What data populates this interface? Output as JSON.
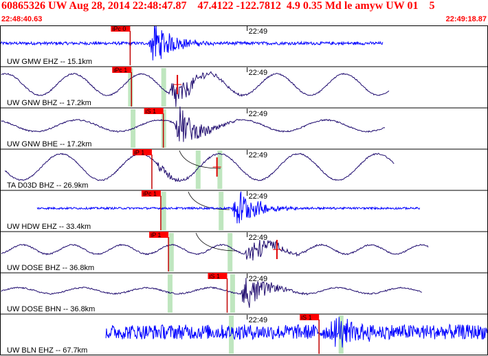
{
  "header": {
    "title": "60865326 UW Aug 28, 2014 22:48:47.87    47.4122 -122.7812  4.9 0.35 Md le amyw UW 01    5",
    "start_time": "22:48:40.63",
    "end_time": "22:49:18.87"
  },
  "colors": {
    "header_text": "#ff0000",
    "trace_blue": "#0000ff",
    "trace_navy": "#1e0a6e",
    "pick_box": "#ff0000",
    "pick_line": "#c00000",
    "window": "#bfe6bf",
    "theory": "#000000"
  },
  "time_axis": {
    "start_s": 0,
    "end_s": 38.24,
    "minute_mark_s": 19.37,
    "minute_label": "22:49"
  },
  "panels": [
    {
      "label": "UW GMW EHZ -- 15.1km",
      "color": "#0000ff",
      "trace_start_s": 0,
      "trace_end_s": 30.0,
      "amp": 0.18,
      "style": "noise",
      "event_s": 12.0,
      "burst_amp": 1.4,
      "period_s": 0,
      "picks": [
        {
          "label": "iPc 0",
          "t_s": 10.2
        }
      ],
      "windows_s": [],
      "theory_curve": false,
      "red_marker_s": null
    },
    {
      "label": "UW GNW BHZ -- 17.2km",
      "color": "#1e0a6e",
      "trace_start_s": 0.1,
      "trace_end_s": 30.5,
      "amp": 0.65,
      "style": "wave",
      "event_s": 13.5,
      "burst_amp": 1.1,
      "period_s": 5.3,
      "picks": [
        {
          "label": "iPc 1",
          "t_s": 10.3
        }
      ],
      "windows_s": [
        10.2,
        12.8
      ],
      "theory_curve": false,
      "red_marker_s": 13.9
    },
    {
      "label": "UW GNW BHE -- 17.2km",
      "color": "#1e0a6e",
      "trace_start_s": 0.1,
      "trace_end_s": 30.2,
      "amp": 0.35,
      "style": "wave",
      "event_s": 14.0,
      "burst_amp": 1.3,
      "period_s": 6.5,
      "picks": [
        {
          "label": "iS 1",
          "t_s": 12.8
        }
      ],
      "windows_s": [
        10.4,
        12.8
      ],
      "theory_curve": false,
      "red_marker_s": null
    },
    {
      "label": "TA D03D BHZ -- 26.9km",
      "color": "#1e0a6e",
      "trace_start_s": 0.4,
      "trace_end_s": 30.9,
      "amp": 0.8,
      "style": "wave",
      "event_s": 12.5,
      "burst_amp": 0.3,
      "period_s": 6.2,
      "picks": [
        {
          "label": "iP 1",
          "t_s": 11.9
        }
      ],
      "windows_s": [
        15.5,
        17.2
      ],
      "theory_curve": true,
      "red_marker_s": 17.0
    },
    {
      "label": "UW HDW EHZ -- 33.4km",
      "color": "#0000ff",
      "trace_start_s": 2.9,
      "trace_end_s": 32.9,
      "amp": 0.12,
      "style": "noise",
      "event_s": 18.5,
      "burst_amp": 1.4,
      "period_s": 0,
      "picks": [
        {
          "label": "iPc 1",
          "t_s": 12.6
        }
      ],
      "windows_s": [
        12.8,
        17.3
      ],
      "theory_curve": true,
      "red_marker_s": null
    },
    {
      "label": "UW DOSE BHZ -- 36.8km",
      "color": "#1e0a6e",
      "trace_start_s": 0.1,
      "trace_end_s": 33.6,
      "amp": 0.28,
      "style": "wave",
      "event_s": 19.5,
      "burst_amp": 1.0,
      "period_s": 3.9,
      "picks": [
        {
          "label": "iP 1",
          "t_s": 13.2
        }
      ],
      "windows_s": [
        13.4,
        18.0
      ],
      "theory_curve": true,
      "red_marker_s": 21.7
    },
    {
      "label": "UW DOSE BHN -- 36.8km",
      "color": "#1e0a6e",
      "trace_start_s": 0.1,
      "trace_end_s": 33.1,
      "amp": 0.18,
      "style": "wave",
      "event_s": 19.2,
      "burst_amp": 1.2,
      "period_s": 5.0,
      "picks": [
        {
          "label": "iS 1",
          "t_s": 17.8
        }
      ],
      "windows_s": [
        13.3,
        18.2
      ],
      "theory_curve": false,
      "red_marker_s": null
    },
    {
      "label": "UW BLN EHZ -- 67.7km",
      "color": "#0000ff",
      "trace_start_s": 8.3,
      "trace_end_s": 38.24,
      "amp": 0.9,
      "style": "noise",
      "event_s": 26.2,
      "burst_amp": 1.0,
      "period_s": 0,
      "picks": [
        {
          "label": "iS 1",
          "t_s": 25.0
        }
      ],
      "windows_s": [
        18.1,
        26.7
      ],
      "theory_curve": false,
      "red_marker_s": null
    }
  ]
}
